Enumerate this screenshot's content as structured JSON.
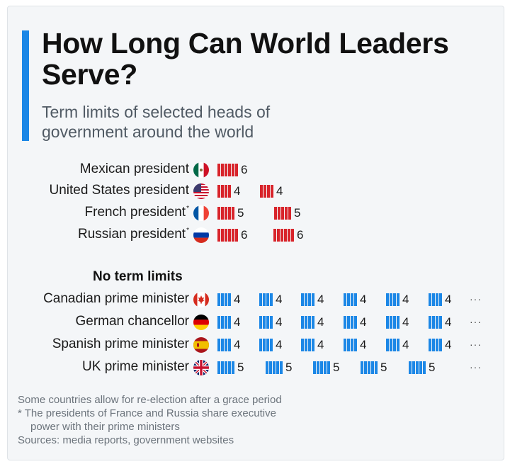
{
  "chart_data": {
    "type": "bar",
    "title": "How Long Can World Leaders Serve?",
    "subtitle": "Term limits of selected heads of government around the world",
    "section_label": "No term limits",
    "limited": [
      {
        "label": "Mexican president",
        "asterisk": false,
        "flag": "mexico-flag",
        "terms": [
          6
        ]
      },
      {
        "label": "United States president",
        "asterisk": false,
        "flag": "usa-flag",
        "terms": [
          4,
          4
        ]
      },
      {
        "label": "French president",
        "asterisk": true,
        "flag": "france-flag",
        "terms": [
          5,
          5
        ]
      },
      {
        "label": "Russian president",
        "asterisk": true,
        "flag": "russia-flag",
        "terms": [
          6,
          6
        ]
      }
    ],
    "unlimited": [
      {
        "label": "Canadian prime minister",
        "flag": "canada-flag",
        "terms": [
          4,
          4,
          4,
          4,
          4,
          4
        ],
        "continues": "···"
      },
      {
        "label": "German chancellor",
        "flag": "germany-flag",
        "terms": [
          4,
          4,
          4,
          4,
          4,
          4
        ],
        "continues": "···"
      },
      {
        "label": "Spanish prime minister",
        "flag": "spain-flag",
        "terms": [
          4,
          4,
          4,
          4,
          4,
          4
        ],
        "continues": "···"
      },
      {
        "label": "UK prime minister",
        "flag": "uk-flag",
        "terms": [
          5,
          5,
          5,
          5,
          5
        ],
        "continues": "···"
      }
    ],
    "colors": {
      "limited": "#d8242b",
      "unlimited": "#1c87e6",
      "accent": "#1c87e6"
    },
    "notes": [
      "Some countries allow for re-election after a grace period",
      "* The presidents of France and Russia share executive",
      "power with their prime ministers",
      "Sources: media reports, government websites"
    ]
  }
}
